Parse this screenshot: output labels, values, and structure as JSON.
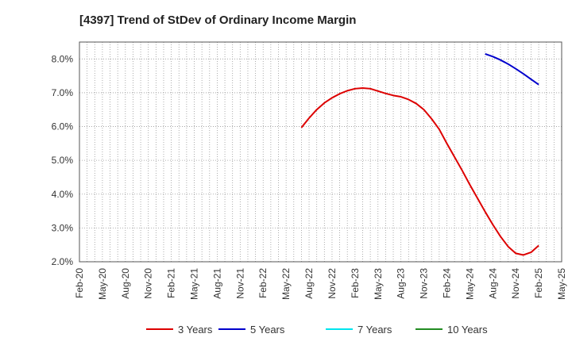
{
  "chart_data": {
    "type": "line",
    "title": "[4397]  Trend of StDev of Ordinary Income Margin",
    "xlabel": "",
    "ylabel": "",
    "ylim": [
      2.0,
      8.5
    ],
    "y_ticks": [
      "2.0%",
      "3.0%",
      "4.0%",
      "5.0%",
      "6.0%",
      "7.0%",
      "8.0%"
    ],
    "y_tick_values": [
      2,
      3,
      4,
      5,
      6,
      7,
      8
    ],
    "x_ticks": [
      "Feb-20",
      "May-20",
      "Aug-20",
      "Nov-20",
      "Feb-21",
      "May-21",
      "Aug-21",
      "Nov-21",
      "Feb-22",
      "May-22",
      "Aug-22",
      "Nov-22",
      "Feb-23",
      "May-23",
      "Aug-23",
      "Nov-23",
      "Feb-24",
      "May-24",
      "Aug-24",
      "Nov-24",
      "Feb-25",
      "May-25"
    ],
    "x_minor_per_major": 3,
    "grid": true,
    "legend_position": "bottom",
    "series": [
      {
        "name": "3 Years",
        "color": "#dd0000",
        "x": [
          "Jul-22",
          "Aug-22",
          "Sep-22",
          "Oct-22",
          "Nov-22",
          "Dec-22",
          "Jan-23",
          "Feb-23",
          "Mar-23",
          "Apr-23",
          "May-23",
          "Jun-23",
          "Jul-23",
          "Aug-23",
          "Sep-23",
          "Oct-23",
          "Nov-23",
          "Dec-23",
          "Jan-24",
          "Feb-24",
          "Mar-24",
          "Apr-24",
          "May-24",
          "Jun-24",
          "Jul-24",
          "Aug-24",
          "Sep-24",
          "Oct-24",
          "Nov-24",
          "Dec-24",
          "Jan-25",
          "Feb-25"
        ],
        "values": [
          5.97,
          6.25,
          6.5,
          6.7,
          6.85,
          6.97,
          7.06,
          7.12,
          7.14,
          7.12,
          7.05,
          6.98,
          6.92,
          6.88,
          6.8,
          6.68,
          6.5,
          6.23,
          5.92,
          5.5,
          5.1,
          4.7,
          4.28,
          3.88,
          3.48,
          3.1,
          2.75,
          2.45,
          2.25,
          2.2,
          2.28,
          2.48
        ]
      },
      {
        "name": "5 Years",
        "color": "#0000cc",
        "x": [
          "Jul-24",
          "Aug-24",
          "Sep-24",
          "Oct-24",
          "Nov-24",
          "Dec-24",
          "Jan-25",
          "Feb-25"
        ],
        "values": [
          8.15,
          8.07,
          7.97,
          7.85,
          7.71,
          7.56,
          7.4,
          7.24
        ]
      },
      {
        "name": "7 Years",
        "color": "#00e5ee",
        "x": [],
        "values": []
      },
      {
        "name": "10 Years",
        "color": "#228b22",
        "x": [],
        "values": []
      }
    ]
  }
}
